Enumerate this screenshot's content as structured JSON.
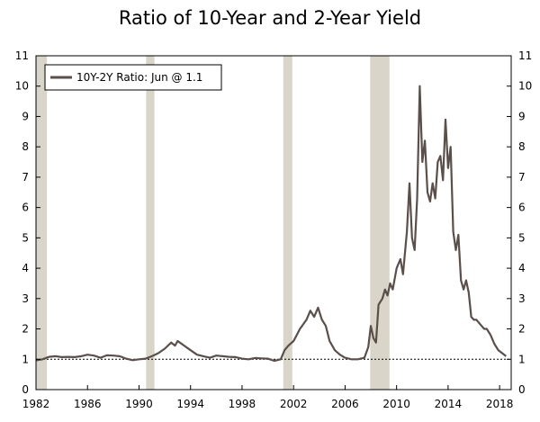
{
  "chart_data": {
    "type": "line",
    "title": "Ratio of 10-Year and 2-Year Yield",
    "xlabel": "",
    "ylabel": "",
    "xlim": [
      1982,
      2018.9
    ],
    "ylim": [
      0,
      11
    ],
    "x_ticks": [
      1982,
      1986,
      1990,
      1994,
      1998,
      2002,
      2006,
      2010,
      2014,
      2018
    ],
    "y_ticks": [
      0,
      1,
      2,
      3,
      4,
      5,
      6,
      7,
      8,
      9,
      10,
      11
    ],
    "reference_line": {
      "y": 1,
      "style": "dotted"
    },
    "recessions": [
      [
        1982.0,
        1982.85
      ],
      [
        1990.55,
        1991.2
      ],
      [
        2001.2,
        2001.9
      ],
      [
        2007.95,
        2009.45
      ]
    ],
    "legend": {
      "position": "top-left",
      "label": "10Y-2Y Ratio: Jun @ 1.1"
    },
    "colors": {
      "line": "#5a4f4a",
      "recession": "#d9d5c8"
    },
    "grid": false,
    "series": [
      {
        "name": "10Y-2Y Ratio: Jun @ 1.1",
        "points": [
          [
            1982.0,
            0.96
          ],
          [
            1982.5,
            1.0
          ],
          [
            1983.0,
            1.08
          ],
          [
            1983.5,
            1.1
          ],
          [
            1984.0,
            1.07
          ],
          [
            1984.5,
            1.08
          ],
          [
            1985.0,
            1.07
          ],
          [
            1985.5,
            1.1
          ],
          [
            1986.0,
            1.15
          ],
          [
            1986.5,
            1.12
          ],
          [
            1987.0,
            1.05
          ],
          [
            1987.5,
            1.13
          ],
          [
            1988.0,
            1.12
          ],
          [
            1988.5,
            1.1
          ],
          [
            1989.0,
            1.02
          ],
          [
            1989.5,
            0.97
          ],
          [
            1990.0,
            1.0
          ],
          [
            1990.5,
            1.02
          ],
          [
            1991.0,
            1.1
          ],
          [
            1991.5,
            1.2
          ],
          [
            1992.0,
            1.35
          ],
          [
            1992.5,
            1.55
          ],
          [
            1992.8,
            1.45
          ],
          [
            1993.0,
            1.6
          ],
          [
            1993.5,
            1.45
          ],
          [
            1994.0,
            1.3
          ],
          [
            1994.5,
            1.15
          ],
          [
            1995.0,
            1.1
          ],
          [
            1995.5,
            1.05
          ],
          [
            1996.0,
            1.12
          ],
          [
            1996.5,
            1.1
          ],
          [
            1997.0,
            1.08
          ],
          [
            1997.5,
            1.07
          ],
          [
            1998.0,
            1.02
          ],
          [
            1998.5,
            1.0
          ],
          [
            1999.0,
            1.04
          ],
          [
            1999.5,
            1.03
          ],
          [
            2000.0,
            1.02
          ],
          [
            2000.5,
            0.95
          ],
          [
            2001.0,
            1.0
          ],
          [
            2001.3,
            1.3
          ],
          [
            2001.6,
            1.45
          ],
          [
            2002.0,
            1.6
          ],
          [
            2002.5,
            2.0
          ],
          [
            2003.0,
            2.3
          ],
          [
            2003.3,
            2.6
          ],
          [
            2003.6,
            2.4
          ],
          [
            2003.9,
            2.7
          ],
          [
            2004.2,
            2.3
          ],
          [
            2004.5,
            2.1
          ],
          [
            2004.8,
            1.6
          ],
          [
            2005.2,
            1.3
          ],
          [
            2005.6,
            1.15
          ],
          [
            2006.0,
            1.05
          ],
          [
            2006.5,
            1.0
          ],
          [
            2007.0,
            1.0
          ],
          [
            2007.5,
            1.05
          ],
          [
            2007.8,
            1.4
          ],
          [
            2008.0,
            2.1
          ],
          [
            2008.2,
            1.7
          ],
          [
            2008.4,
            1.55
          ],
          [
            2008.6,
            2.8
          ],
          [
            2008.9,
            3.0
          ],
          [
            2009.1,
            3.3
          ],
          [
            2009.3,
            3.1
          ],
          [
            2009.5,
            3.5
          ],
          [
            2009.7,
            3.3
          ],
          [
            2010.0,
            4.0
          ],
          [
            2010.3,
            4.3
          ],
          [
            2010.5,
            3.8
          ],
          [
            2010.8,
            5.2
          ],
          [
            2011.0,
            6.8
          ],
          [
            2011.2,
            5.0
          ],
          [
            2011.4,
            4.6
          ],
          [
            2011.6,
            6.3
          ],
          [
            2011.8,
            10.0
          ],
          [
            2012.0,
            7.5
          ],
          [
            2012.2,
            8.2
          ],
          [
            2012.4,
            6.5
          ],
          [
            2012.6,
            6.2
          ],
          [
            2012.8,
            6.8
          ],
          [
            2013.0,
            6.3
          ],
          [
            2013.2,
            7.5
          ],
          [
            2013.4,
            7.7
          ],
          [
            2013.6,
            6.9
          ],
          [
            2013.8,
            8.9
          ],
          [
            2014.0,
            7.3
          ],
          [
            2014.2,
            8.0
          ],
          [
            2014.4,
            5.2
          ],
          [
            2014.6,
            4.6
          ],
          [
            2014.8,
            5.1
          ],
          [
            2015.0,
            3.6
          ],
          [
            2015.2,
            3.3
          ],
          [
            2015.4,
            3.6
          ],
          [
            2015.6,
            3.2
          ],
          [
            2015.8,
            2.4
          ],
          [
            2016.0,
            2.3
          ],
          [
            2016.2,
            2.3
          ],
          [
            2016.4,
            2.2
          ],
          [
            2016.6,
            2.1
          ],
          [
            2016.8,
            2.0
          ],
          [
            2017.0,
            2.0
          ],
          [
            2017.3,
            1.8
          ],
          [
            2017.6,
            1.5
          ],
          [
            2017.9,
            1.3
          ],
          [
            2018.2,
            1.2
          ],
          [
            2018.5,
            1.1
          ]
        ]
      }
    ]
  }
}
